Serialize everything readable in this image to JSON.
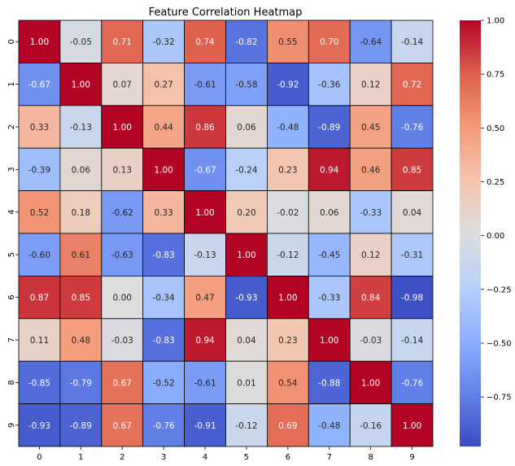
{
  "chart_data": {
    "type": "heatmap",
    "title": "Feature Correlation Heatmap",
    "xlabel": "",
    "ylabel": "",
    "x_tick_labels": [
      "0",
      "1",
      "2",
      "3",
      "4",
      "5",
      "6",
      "7",
      "8",
      "9"
    ],
    "y_tick_labels": [
      "0",
      "1",
      "2",
      "3",
      "4",
      "5",
      "6",
      "7",
      "8",
      "9"
    ],
    "colormap": "coolwarm",
    "value_range": [
      -1.0,
      1.0
    ],
    "cell_borders": true,
    "cell_border_color": "#000000",
    "annotation_format": "0.00",
    "colorbar": {
      "placement": "right",
      "ticks": [
        1.0,
        0.75,
        0.5,
        0.25,
        0.0,
        -0.25,
        -0.5,
        -0.75
      ],
      "tick_labels": [
        "1.00",
        "0.75",
        "0.50",
        "0.25",
        "0.00",
        "−0.25",
        "−0.50",
        "−0.75"
      ]
    },
    "values": [
      [
        1.0,
        -0.05,
        0.71,
        -0.32,
        0.74,
        -0.82,
        0.55,
        0.7,
        -0.64,
        -0.14
      ],
      [
        -0.67,
        1.0,
        0.07,
        0.27,
        -0.61,
        -0.58,
        -0.92,
        -0.36,
        0.12,
        0.72
      ],
      [
        0.33,
        -0.13,
        1.0,
        0.44,
        0.86,
        0.06,
        -0.48,
        -0.89,
        0.45,
        -0.76
      ],
      [
        -0.39,
        0.06,
        0.13,
        1.0,
        -0.67,
        -0.24,
        0.23,
        0.94,
        0.46,
        0.85
      ],
      [
        0.52,
        0.18,
        -0.62,
        0.33,
        1.0,
        0.2,
        -0.02,
        0.06,
        -0.33,
        0.04
      ],
      [
        -0.6,
        0.61,
        -0.63,
        -0.83,
        -0.13,
        1.0,
        -0.12,
        -0.45,
        0.12,
        -0.31
      ],
      [
        0.87,
        0.85,
        0.0,
        -0.34,
        0.47,
        -0.93,
        1.0,
        -0.33,
        0.84,
        -0.98
      ],
      [
        0.11,
        0.48,
        -0.03,
        -0.83,
        0.94,
        0.04,
        0.23,
        1.0,
        -0.03,
        -0.14
      ],
      [
        -0.85,
        -0.79,
        0.67,
        -0.52,
        -0.61,
        0.01,
        0.54,
        -0.88,
        1.0,
        -0.76
      ],
      [
        -0.93,
        -0.89,
        0.67,
        -0.76,
        -0.91,
        -0.12,
        0.69,
        -0.48,
        -0.16,
        1.0
      ]
    ]
  }
}
